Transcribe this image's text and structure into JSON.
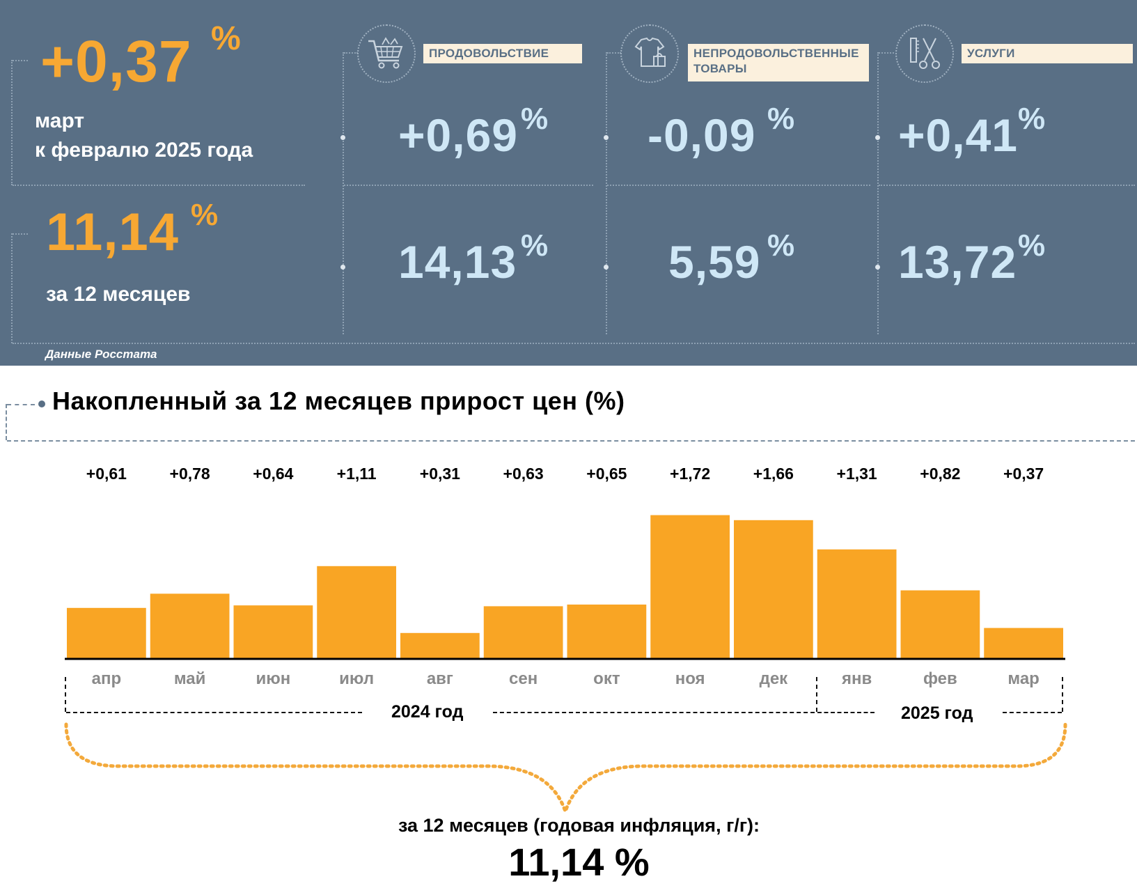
{
  "top_panel": {
    "monthly": {
      "value": "+0,37",
      "unit": "%",
      "caption_line1": "март",
      "caption_line2": "к февралю 2025 года"
    },
    "annual": {
      "value": "11,14",
      "unit": "%",
      "caption": "за 12 месяцев"
    },
    "categories": [
      {
        "label_line1": "ПРОДОВОЛЬСТВИЕ",
        "label_line2": "",
        "icon": "shopping-cart-icon",
        "monthly": "+0,69",
        "annual": "14,13",
        "unit": "%"
      },
      {
        "label_line1": "НЕПРОДОВОЛЬСТВЕННЫЕ",
        "label_line2": "ТОВАРЫ",
        "icon": "clothing-bag-icon",
        "monthly": "-0,09",
        "annual": "5,59",
        "unit": "%"
      },
      {
        "label_line1": "УСЛУГИ",
        "label_line2": "",
        "icon": "scissors-comb-icon",
        "monthly": "+0,41",
        "annual": "13,72",
        "unit": "%"
      }
    ],
    "source": "Данные Росстата"
  },
  "chart_title": "Накопленный за 12 месяцев прирост цен (%)",
  "chart_data": {
    "type": "bar",
    "categories": [
      "апр",
      "май",
      "июн",
      "июл",
      "авг",
      "сен",
      "окт",
      "ноя",
      "дек",
      "янв",
      "фев",
      "мар"
    ],
    "values": [
      0.61,
      0.78,
      0.64,
      1.11,
      0.31,
      0.63,
      0.65,
      1.72,
      1.66,
      1.31,
      0.82,
      0.37
    ],
    "value_labels": [
      "+0,61",
      "+0,78",
      "+0,64",
      "+1,11",
      "+0,31",
      "+0,63",
      "+0,65",
      "+1,72",
      "+1,66",
      "+1,31",
      "+0,82",
      "+0,37"
    ],
    "year_groups": [
      {
        "label": "2024 год",
        "from": "апр",
        "to": "дек"
      },
      {
        "label": "2025 год",
        "from": "янв",
        "to": "мар"
      }
    ],
    "bar_color": "#f9a524",
    "ylim": [
      0,
      1.8
    ],
    "grid": false,
    "axis_labels_shown": false
  },
  "summary": {
    "caption": "за 12 месяцев (годовая инфляция, г/г):",
    "value": "11,14 %"
  },
  "colors": {
    "panel_bg": "#596f85",
    "accent_orange": "#f7a833",
    "stat_blue": "#cfe7f6",
    "label_bg": "#fbf0dd"
  }
}
